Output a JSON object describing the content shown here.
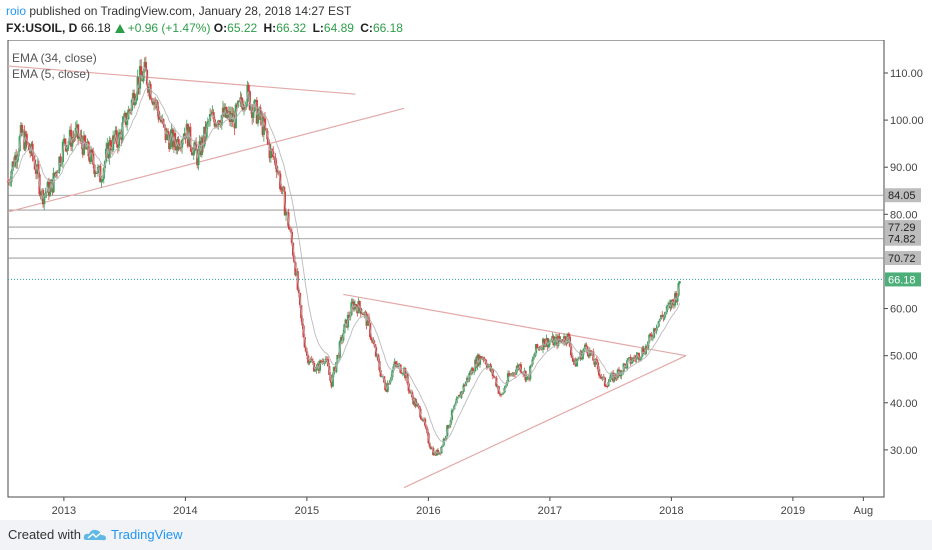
{
  "header": {
    "author": "roio",
    "published_text": "published on TradingView.com, January 28, 2018 14:27 EST",
    "symbol": "FX:USOIL, D",
    "last": "66.18",
    "change": "+0.96 (+1.47%)",
    "open_label": "O:",
    "open": "65.22",
    "high_label": "H:",
    "high": "66.32",
    "low_label": "L:",
    "low": "64.89",
    "close_label": "C:",
    "close": "66.18"
  },
  "legend": {
    "ema34": "EMA (34, close)",
    "ema5": "EMA (5, close)"
  },
  "footer": {
    "created_with": "Created with",
    "brand": "TradingView"
  },
  "colors": {
    "up": "#3c9f5a",
    "down": "#d44040",
    "trendline": "#e3a9a9",
    "ema": "#b4b4b4",
    "level": "#8a8a8a",
    "price_line": "#26a69a",
    "price_label": "#4caf7a",
    "level_label": "#bdbdbd"
  },
  "chart_data": {
    "type": "candlestick",
    "x_ticks": [
      "2013",
      "2014",
      "2015",
      "2016",
      "2017",
      "2018",
      "2019",
      "Aug"
    ],
    "x_tick_times": [
      2013.0,
      2014.0,
      2015.0,
      2016.0,
      2017.0,
      2018.0,
      2019.0,
      2019.58
    ],
    "x_range": [
      2012.54,
      2019.75
    ],
    "y_ticks": [
      "30.00",
      "40.00",
      "50.00",
      "60.00",
      "80.00",
      "90.00",
      "100.00",
      "110.00"
    ],
    "y_tick_values": [
      30,
      40,
      50,
      60,
      80,
      90,
      100,
      110
    ],
    "y_range": [
      20,
      117
    ],
    "last_price": 66.18,
    "last_price_label": "66.18",
    "levels": [
      {
        "value": 84.05,
        "label": "84.05"
      },
      {
        "value": 77.29,
        "label": "77.29"
      },
      {
        "value": 74.82,
        "label": "74.82"
      },
      {
        "value": 70.72,
        "label": "70.72"
      }
    ],
    "level_line_only": [
      80.9
    ],
    "trendlines": [
      {
        "t1": 2012.54,
        "p1": 111.5,
        "t2": 2015.4,
        "p2": 105.5
      },
      {
        "t1": 2012.54,
        "p1": 80.5,
        "t2": 2015.8,
        "p2": 102.5
      },
      {
        "t1": 2015.3,
        "p1": 63.0,
        "t2": 2018.12,
        "p2": 50.0
      },
      {
        "t1": 2015.8,
        "p1": 22.0,
        "t2": 2018.12,
        "p2": 50.0
      }
    ],
    "price_path": [
      [
        2012.54,
        87
      ],
      [
        2012.65,
        97
      ],
      [
        2012.75,
        92
      ],
      [
        2012.82,
        84
      ],
      [
        2012.9,
        86
      ],
      [
        2013.0,
        95
      ],
      [
        2013.1,
        97
      ],
      [
        2013.2,
        93
      ],
      [
        2013.3,
        88
      ],
      [
        2013.38,
        95
      ],
      [
        2013.45,
        96
      ],
      [
        2013.55,
        103
      ],
      [
        2013.6,
        108
      ],
      [
        2013.67,
        110
      ],
      [
        2013.75,
        104
      ],
      [
        2013.83,
        97
      ],
      [
        2013.92,
        95
      ],
      [
        2014.0,
        98
      ],
      [
        2014.1,
        92
      ],
      [
        2014.2,
        100
      ],
      [
        2014.3,
        101
      ],
      [
        2014.4,
        100
      ],
      [
        2014.47,
        104
      ],
      [
        2014.5,
        106
      ],
      [
        2014.55,
        103
      ],
      [
        2014.6,
        101
      ],
      [
        2014.65,
        98
      ],
      [
        2014.7,
        93
      ],
      [
        2014.75,
        91
      ],
      [
        2014.8,
        84
      ],
      [
        2014.85,
        78
      ],
      [
        2014.9,
        70
      ],
      [
        2014.95,
        58
      ],
      [
        2015.0,
        50
      ],
      [
        2015.08,
        47
      ],
      [
        2015.15,
        50
      ],
      [
        2015.2,
        44
      ],
      [
        2015.3,
        55
      ],
      [
        2015.38,
        61
      ],
      [
        2015.45,
        60
      ],
      [
        2015.5,
        57
      ],
      [
        2015.6,
        47
      ],
      [
        2015.65,
        43
      ],
      [
        2015.72,
        48
      ],
      [
        2015.8,
        47
      ],
      [
        2015.85,
        42
      ],
      [
        2015.95,
        37
      ],
      [
        2016.0,
        32
      ],
      [
        2016.05,
        29
      ],
      [
        2016.1,
        30
      ],
      [
        2016.2,
        38
      ],
      [
        2016.3,
        44
      ],
      [
        2016.4,
        49
      ],
      [
        2016.45,
        50
      ],
      [
        2016.55,
        45
      ],
      [
        2016.6,
        41
      ],
      [
        2016.65,
        45
      ],
      [
        2016.75,
        48
      ],
      [
        2016.82,
        45
      ],
      [
        2016.88,
        51
      ],
      [
        2016.95,
        53
      ],
      [
        2017.05,
        53
      ],
      [
        2017.15,
        54
      ],
      [
        2017.2,
        48
      ],
      [
        2017.3,
        52
      ],
      [
        2017.4,
        47
      ],
      [
        2017.45,
        44
      ],
      [
        2017.55,
        46
      ],
      [
        2017.62,
        48
      ],
      [
        2017.7,
        49.5
      ],
      [
        2017.8,
        52
      ],
      [
        2017.88,
        57
      ],
      [
        2017.95,
        59
      ],
      [
        2018.0,
        61
      ],
      [
        2018.06,
        64
      ],
      [
        2018.07,
        66.18
      ]
    ]
  }
}
